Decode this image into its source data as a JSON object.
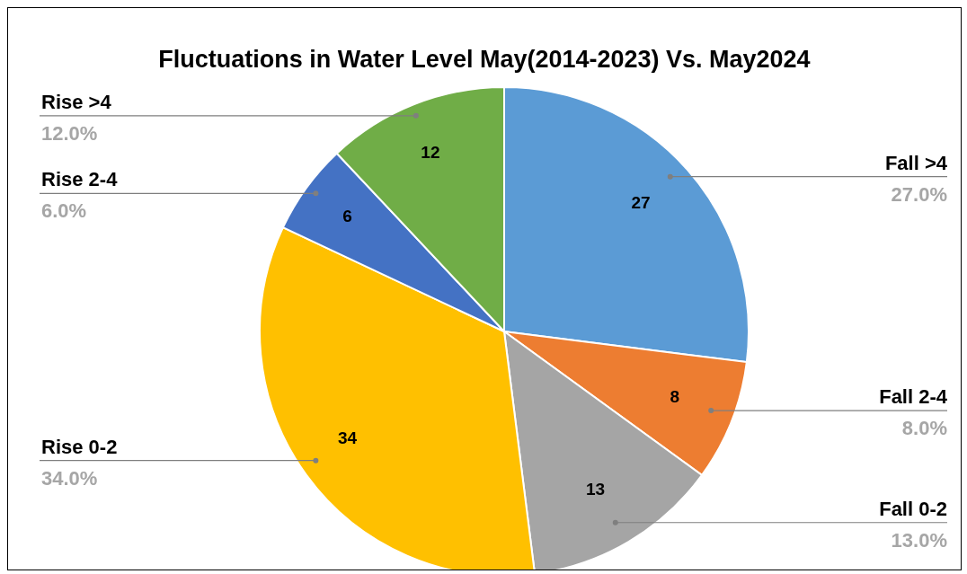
{
  "chart_data": {
    "type": "pie",
    "title": "Fluctuations in Water Level May(2014-2023) Vs. May2024",
    "categories": [
      "Fall >4",
      "Fall 2-4",
      "Fall 0-2",
      "Rise 0-2",
      "Rise 2-4",
      "Rise >4"
    ],
    "values": [
      27,
      8,
      13,
      34,
      6,
      12
    ],
    "colors": [
      "#5b9bd5",
      "#ed7d31",
      "#a5a5a5",
      "#ffc000",
      "#4472c4",
      "#70ad47"
    ],
    "data_labels": true,
    "annotations": [
      "27.0%",
      "8.0%",
      "13.0%",
      "34.0%",
      "6.0%",
      "12.0%"
    ]
  }
}
